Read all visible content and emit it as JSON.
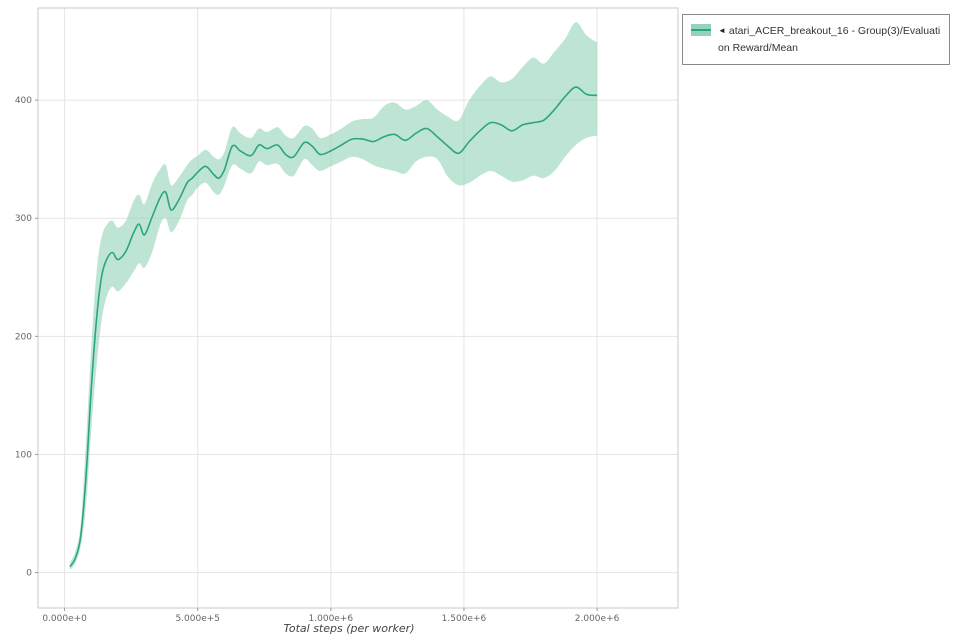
{
  "legend": {
    "collapse_icon": "◄",
    "label": "atari_ACER_breakout_16 - Group(3)/Evaluation Reward/Mean",
    "series_color": "#2aa57f",
    "band_color": "#93d3b7"
  },
  "chart_data": {
    "type": "line",
    "title": "",
    "xlabel": "Total steps (per worker)",
    "ylabel": "",
    "grid": true,
    "legend_position": "top-right",
    "xlim": [
      -100000,
      2304000
    ],
    "ylim": [
      -30,
      478
    ],
    "x_ticks": [
      {
        "v": 0,
        "label": "0.000e+0"
      },
      {
        "v": 500000,
        "label": "5.000e+5"
      },
      {
        "v": 1000000,
        "label": "1.000e+6"
      },
      {
        "v": 1500000,
        "label": "1.500e+6"
      },
      {
        "v": 2000000,
        "label": "2.000e+6"
      }
    ],
    "y_ticks": [
      {
        "v": 0,
        "label": "0"
      },
      {
        "v": 100,
        "label": "100"
      },
      {
        "v": 200,
        "label": "200"
      },
      {
        "v": 300,
        "label": "300"
      },
      {
        "v": 400,
        "label": "400"
      }
    ],
    "series": [
      {
        "name": "atari_ACER_breakout_16 - Group(3)/Evaluation Reward/Mean",
        "color": "#2aa57f",
        "band_color": "#93d3b7",
        "x": [
          20000,
          40000,
          60000,
          80000,
          100000,
          120000,
          140000,
          160000,
          180000,
          200000,
          230000,
          260000,
          280000,
          300000,
          330000,
          360000,
          380000,
          400000,
          430000,
          460000,
          480000,
          500000,
          530000,
          560000,
          580000,
          600000,
          630000,
          660000,
          700000,
          730000,
          760000,
          800000,
          830000,
          860000,
          900000,
          930000,
          960000,
          1000000,
          1040000,
          1080000,
          1120000,
          1160000,
          1200000,
          1240000,
          1280000,
          1320000,
          1360000,
          1400000,
          1440000,
          1480000,
          1520000,
          1560000,
          1600000,
          1640000,
          1680000,
          1720000,
          1760000,
          1800000,
          1840000,
          1880000,
          1920000,
          1960000,
          2000000
        ],
        "mean": [
          5,
          12,
          30,
          80,
          155,
          215,
          252,
          266,
          271,
          265,
          272,
          288,
          295,
          286,
          302,
          318,
          322,
          307,
          316,
          330,
          334,
          339,
          344,
          337,
          334,
          341,
          361,
          357,
          353,
          362,
          359,
          362,
          354,
          352,
          364,
          361,
          354,
          357,
          362,
          367,
          367,
          365,
          369,
          371,
          366,
          372,
          376,
          369,
          361,
          355,
          365,
          374,
          381,
          379,
          374,
          379,
          381,
          383,
          392,
          403,
          411,
          405,
          404
        ],
        "lower": [
          2,
          8,
          22,
          55,
          120,
          175,
          215,
          235,
          242,
          238,
          245,
          255,
          262,
          258,
          272,
          295,
          300,
          288,
          298,
          315,
          320,
          326,
          330,
          322,
          320,
          328,
          345,
          342,
          338,
          348,
          345,
          346,
          338,
          336,
          350,
          345,
          340,
          344,
          348,
          352,
          350,
          345,
          342,
          340,
          338,
          348,
          352,
          350,
          335,
          328,
          330,
          336,
          340,
          336,
          331,
          332,
          336,
          334,
          340,
          352,
          362,
          368,
          370
        ],
        "upper": [
          8,
          18,
          40,
          110,
          190,
          255,
          285,
          295,
          298,
          292,
          298,
          315,
          320,
          312,
          330,
          342,
          345,
          328,
          335,
          345,
          350,
          353,
          358,
          352,
          350,
          356,
          377,
          372,
          368,
          376,
          373,
          377,
          370,
          368,
          378,
          376,
          368,
          371,
          376,
          382,
          384,
          385,
          395,
          398,
          392,
          395,
          400,
          392,
          386,
          383,
          400,
          412,
          420,
          415,
          418,
          428,
          436,
          431,
          441,
          452,
          466,
          455,
          449
        ]
      }
    ]
  }
}
